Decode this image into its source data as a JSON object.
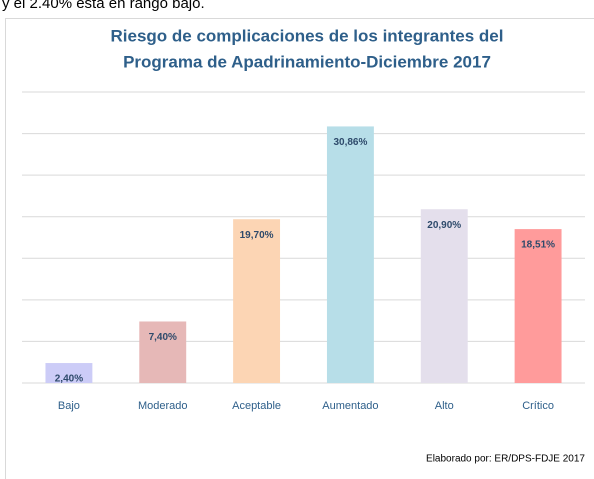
{
  "header_text": "y el 2.40% está en rango bajo.",
  "chart_data": {
    "type": "bar",
    "title": [
      "Riesgo de complicaciones  de los integrantes del",
      "Programa de Apadrinamiento-Diciembre  2017"
    ],
    "categories": [
      "Bajo",
      "Moderado",
      "Aceptable",
      "Aumentado",
      "Alto",
      "Crítico"
    ],
    "values": [
      2.4,
      7.4,
      19.7,
      30.86,
      20.9,
      18.51
    ],
    "value_labels": [
      "2,40%",
      "7,40%",
      "19,70%",
      "30,86%",
      "20,90%",
      "18,51%"
    ],
    "colors": [
      "#ccccf7",
      "#e6b8b7",
      "#fcd5b4",
      "#b7dee8",
      "#e4dfec",
      "#ff9b9b"
    ],
    "ylim": [
      0,
      35
    ],
    "yticks": [
      0,
      5,
      10,
      15,
      20,
      25,
      30,
      35
    ],
    "grid": true,
    "footnote": "Elaborado por:  ER/DPS-FDJE 2017"
  }
}
